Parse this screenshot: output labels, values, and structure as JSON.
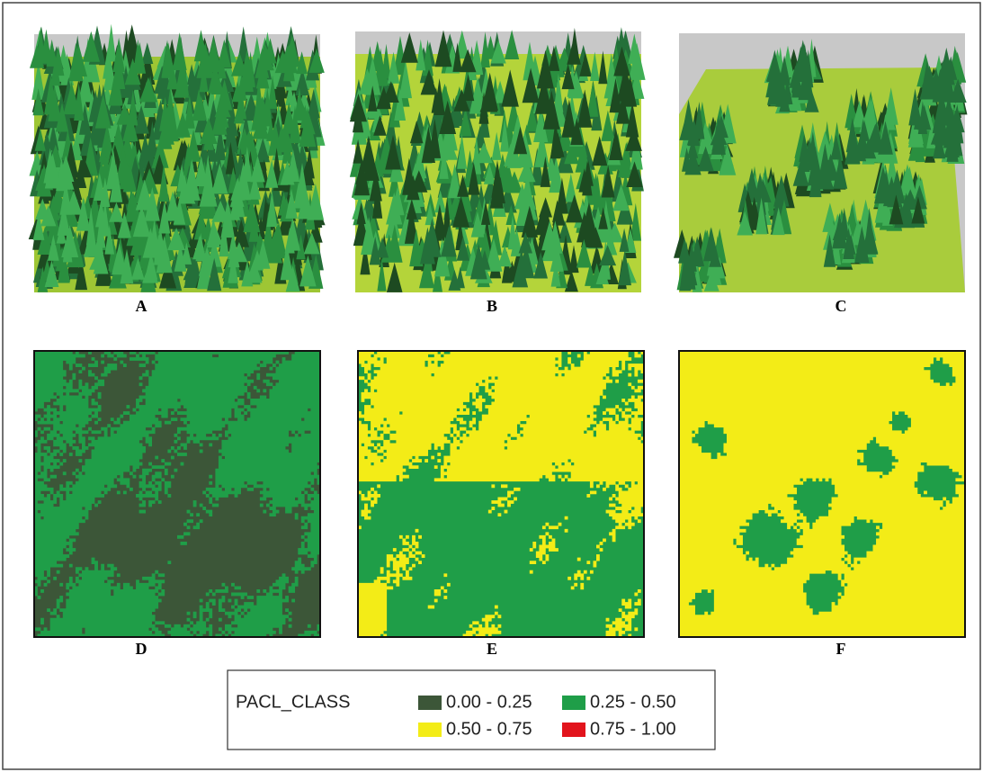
{
  "panels": [
    {
      "label": "A"
    },
    {
      "label": "B"
    },
    {
      "label": "C"
    },
    {
      "label": "D"
    },
    {
      "label": "E"
    },
    {
      "label": "F"
    }
  ],
  "legend": {
    "title": "PACL_CLASS",
    "items": [
      {
        "label": "0.00 - 0.25",
        "color": "#3c5638"
      },
      {
        "label": "0.25 - 0.50",
        "color": "#1f9e48"
      },
      {
        "label": "0.50 - 0.75",
        "color": "#f3ec17"
      },
      {
        "label": "0.75 - 1.00",
        "color": "#e2141c"
      }
    ]
  }
}
